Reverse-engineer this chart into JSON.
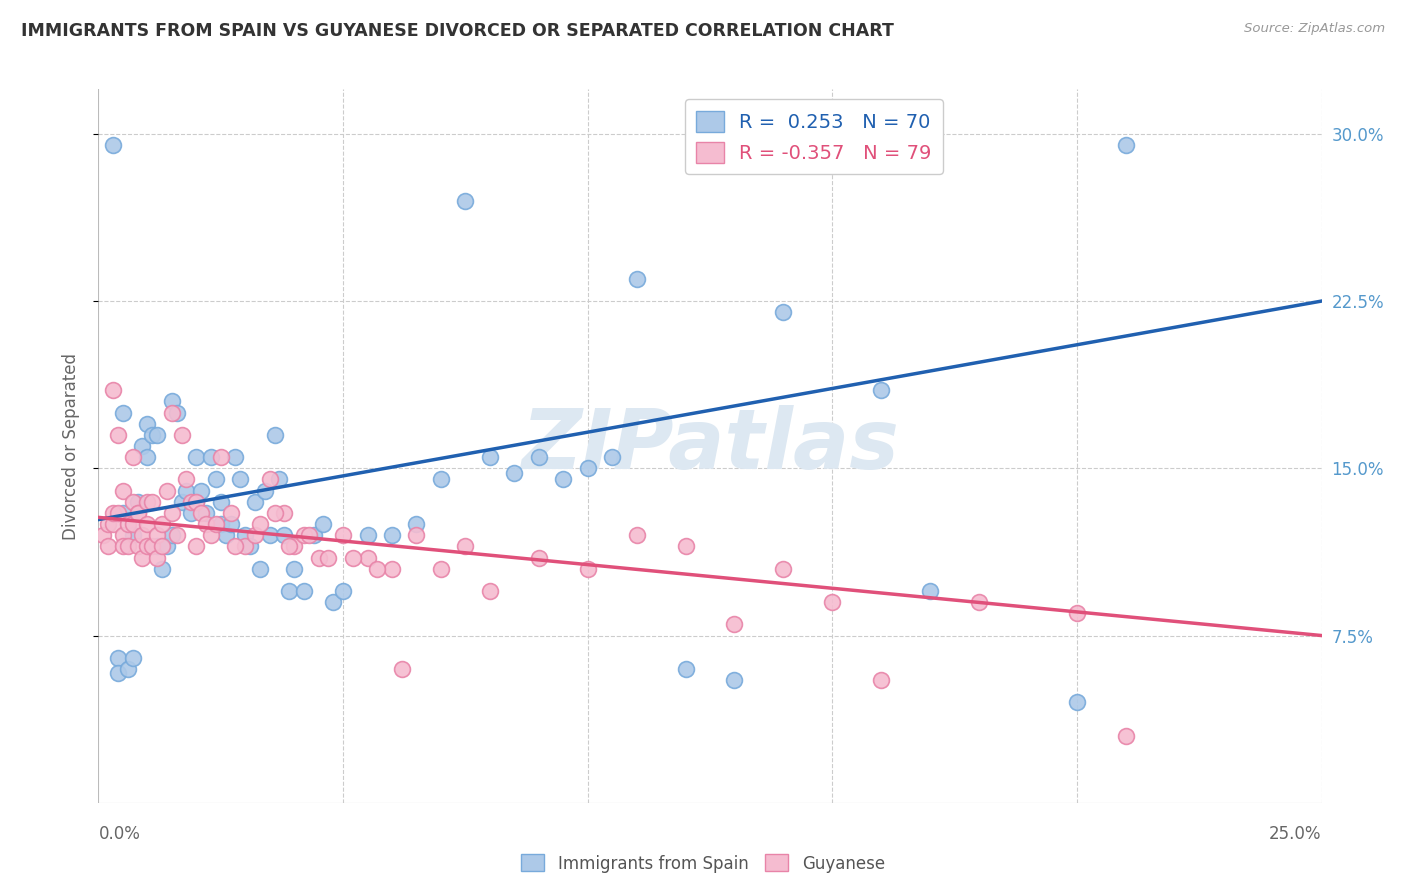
{
  "title": "IMMIGRANTS FROM SPAIN VS GUYANESE DIVORCED OR SEPARATED CORRELATION CHART",
  "source": "Source: ZipAtlas.com",
  "ylabel": "Divorced or Separated",
  "yticks_right": [
    "7.5%",
    "15.0%",
    "22.5%",
    "30.0%"
  ],
  "ytick_values": [
    0.075,
    0.15,
    0.225,
    0.3
  ],
  "xlim": [
    0.0,
    0.25
  ],
  "ylim": [
    0.0,
    0.32
  ],
  "legend_blue_R": "0.253",
  "legend_blue_N": "70",
  "legend_pink_R": "-0.357",
  "legend_pink_N": "79",
  "legend_blue_label": "Immigrants from Spain",
  "legend_pink_label": "Guyanese",
  "blue_color": "#adc9e8",
  "blue_edge": "#78aadb",
  "pink_color": "#f5bcd0",
  "pink_edge": "#e884a8",
  "line_blue": "#2060b0",
  "line_pink": "#e0507a",
  "blue_line_x": [
    0.0,
    0.25
  ],
  "blue_line_y": [
    0.127,
    0.225
  ],
  "pink_line_x": [
    0.0,
    0.25
  ],
  "pink_line_y": [
    0.128,
    0.075
  ],
  "blue_scatter_x": [
    0.005,
    0.005,
    0.007,
    0.008,
    0.009,
    0.01,
    0.01,
    0.011,
    0.012,
    0.012,
    0.013,
    0.014,
    0.015,
    0.015,
    0.016,
    0.017,
    0.018,
    0.019,
    0.02,
    0.02,
    0.021,
    0.022,
    0.023,
    0.024,
    0.025,
    0.025,
    0.026,
    0.027,
    0.028,
    0.029,
    0.03,
    0.031,
    0.032,
    0.033,
    0.034,
    0.035,
    0.036,
    0.037,
    0.038,
    0.039,
    0.04,
    0.042,
    0.044,
    0.046,
    0.048,
    0.05,
    0.055,
    0.06,
    0.065,
    0.07,
    0.075,
    0.08,
    0.085,
    0.09,
    0.095,
    0.1,
    0.105,
    0.11,
    0.12,
    0.13,
    0.14,
    0.16,
    0.17,
    0.2,
    0.21,
    0.003,
    0.004,
    0.004,
    0.006,
    0.007
  ],
  "blue_scatter_y": [
    0.13,
    0.175,
    0.12,
    0.135,
    0.16,
    0.17,
    0.155,
    0.165,
    0.165,
    0.115,
    0.105,
    0.115,
    0.12,
    0.18,
    0.175,
    0.135,
    0.14,
    0.13,
    0.155,
    0.135,
    0.14,
    0.13,
    0.155,
    0.145,
    0.125,
    0.135,
    0.12,
    0.125,
    0.155,
    0.145,
    0.12,
    0.115,
    0.135,
    0.105,
    0.14,
    0.12,
    0.165,
    0.145,
    0.12,
    0.095,
    0.105,
    0.095,
    0.12,
    0.125,
    0.09,
    0.095,
    0.12,
    0.12,
    0.125,
    0.145,
    0.27,
    0.155,
    0.148,
    0.155,
    0.145,
    0.15,
    0.155,
    0.235,
    0.06,
    0.055,
    0.22,
    0.185,
    0.095,
    0.045,
    0.295,
    0.295,
    0.065,
    0.058,
    0.06,
    0.065
  ],
  "pink_scatter_x": [
    0.001,
    0.002,
    0.002,
    0.003,
    0.003,
    0.003,
    0.004,
    0.004,
    0.005,
    0.005,
    0.005,
    0.006,
    0.006,
    0.007,
    0.007,
    0.007,
    0.008,
    0.008,
    0.008,
    0.009,
    0.009,
    0.01,
    0.01,
    0.01,
    0.011,
    0.011,
    0.012,
    0.012,
    0.013,
    0.013,
    0.014,
    0.015,
    0.015,
    0.016,
    0.017,
    0.018,
    0.019,
    0.02,
    0.02,
    0.021,
    0.022,
    0.023,
    0.025,
    0.027,
    0.03,
    0.032,
    0.035,
    0.038,
    0.04,
    0.042,
    0.045,
    0.05,
    0.055,
    0.06,
    0.065,
    0.07,
    0.075,
    0.08,
    0.09,
    0.1,
    0.11,
    0.12,
    0.13,
    0.14,
    0.15,
    0.16,
    0.18,
    0.2,
    0.21,
    0.024,
    0.028,
    0.033,
    0.036,
    0.039,
    0.043,
    0.047,
    0.052,
    0.057,
    0.062
  ],
  "pink_scatter_y": [
    0.12,
    0.115,
    0.125,
    0.125,
    0.13,
    0.185,
    0.13,
    0.165,
    0.12,
    0.14,
    0.115,
    0.115,
    0.125,
    0.125,
    0.155,
    0.135,
    0.13,
    0.115,
    0.13,
    0.12,
    0.11,
    0.115,
    0.125,
    0.135,
    0.115,
    0.135,
    0.12,
    0.11,
    0.125,
    0.115,
    0.14,
    0.175,
    0.13,
    0.12,
    0.165,
    0.145,
    0.135,
    0.135,
    0.115,
    0.13,
    0.125,
    0.12,
    0.155,
    0.13,
    0.115,
    0.12,
    0.145,
    0.13,
    0.115,
    0.12,
    0.11,
    0.12,
    0.11,
    0.105,
    0.12,
    0.105,
    0.115,
    0.095,
    0.11,
    0.105,
    0.12,
    0.115,
    0.08,
    0.105,
    0.09,
    0.055,
    0.09,
    0.085,
    0.03,
    0.125,
    0.115,
    0.125,
    0.13,
    0.115,
    0.12,
    0.11,
    0.11,
    0.105,
    0.06
  ]
}
